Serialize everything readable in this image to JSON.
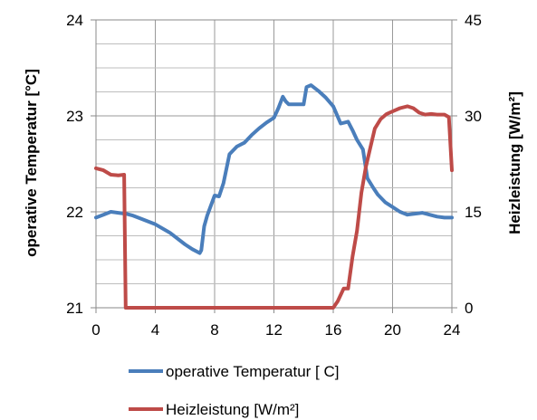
{
  "chart_data": {
    "type": "line",
    "x_ticks": [
      "0",
      "4",
      "8",
      "12",
      "16",
      "20",
      "24"
    ],
    "xlim": [
      0,
      24
    ],
    "y_left": {
      "label": "operative Temperatur [°C]",
      "ylim": [
        21,
        24
      ],
      "ticks": [
        "21",
        "22",
        "23",
        "24"
      ]
    },
    "y_right": {
      "label": "Heizleistung [W/m²]",
      "ylim": [
        0,
        45
      ],
      "ticks": [
        "0",
        "15",
        "30",
        "45"
      ]
    },
    "grid": true,
    "legend_position": "bottom",
    "series": [
      {
        "name": "operative Temperatur [ C]",
        "axis": "left",
        "color": "#4a7ebb",
        "x": [
          0,
          0.5,
          1,
          1.5,
          2,
          2.5,
          3,
          4,
          5,
          6,
          6.5,
          7,
          7.1,
          7.3,
          7.5,
          8,
          8.3,
          8.6,
          9,
          9.5,
          10,
          10.5,
          11,
          11.5,
          12,
          12.3,
          12.6,
          12.8,
          13,
          13.5,
          14,
          14.2,
          14.5,
          15,
          15.5,
          16,
          16.5,
          17,
          17.3,
          17.6,
          18,
          18.3,
          18.7,
          19,
          19.5,
          20,
          20.5,
          21,
          21.5,
          22,
          22.5,
          23,
          23.5,
          24
        ],
        "y": [
          21.94,
          21.97,
          22.0,
          21.99,
          21.98,
          21.96,
          21.93,
          21.87,
          21.78,
          21.66,
          21.61,
          21.57,
          21.6,
          21.85,
          21.96,
          22.17,
          22.16,
          22.3,
          22.6,
          22.68,
          22.72,
          22.8,
          22.87,
          22.93,
          22.98,
          23.08,
          23.2,
          23.15,
          23.12,
          23.12,
          23.12,
          23.3,
          23.32,
          23.26,
          23.19,
          23.1,
          22.92,
          22.94,
          22.85,
          22.75,
          22.65,
          22.35,
          22.25,
          22.18,
          22.1,
          22.05,
          22.0,
          21.97,
          21.98,
          21.99,
          21.97,
          21.95,
          21.94,
          21.94
        ]
      },
      {
        "name": "Heizleistung [W/m²]",
        "axis": "right",
        "color": "#be4b48",
        "x": [
          0,
          0.5,
          1,
          1.5,
          1.9,
          2.0,
          4,
          8,
          12,
          16,
          16.3,
          16.7,
          17,
          17.3,
          17.6,
          17.9,
          18.2,
          18.5,
          18.8,
          19.2,
          19.6,
          20,
          20.5,
          21,
          21.4,
          21.8,
          22.2,
          22.6,
          23,
          23.5,
          23.8,
          24
        ],
        "y": [
          21.8,
          21.5,
          20.8,
          20.7,
          20.8,
          0,
          0,
          0,
          0,
          0,
          1,
          3,
          3,
          8,
          12,
          18,
          22,
          25,
          28,
          29.5,
          30.3,
          30.7,
          31.2,
          31.5,
          31.2,
          30.5,
          30.2,
          30.3,
          30.2,
          30.2,
          29.8,
          21.5
        ]
      }
    ]
  }
}
